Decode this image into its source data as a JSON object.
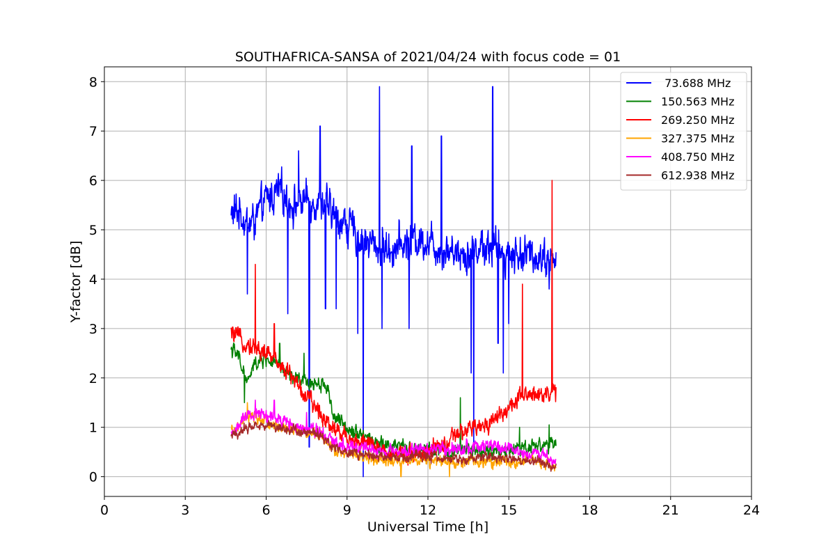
{
  "chart_data": {
    "type": "line",
    "title": "SOUTHAFRICA-SANSA of 2021/04/24 with focus code = 01",
    "xlabel": "Universal Time [h]",
    "ylabel": "Y-factor [dB]",
    "xlim": [
      0,
      24
    ],
    "ylim": [
      -0.4,
      8.3
    ],
    "xticks": [
      0,
      3,
      6,
      9,
      12,
      15,
      18,
      21,
      24
    ],
    "xtick_labels": [
      "0",
      "3",
      "6",
      "9",
      "12",
      "15",
      "18",
      "21",
      "24"
    ],
    "yticks": [
      0,
      1,
      2,
      3,
      4,
      5,
      6,
      7,
      8
    ],
    "ytick_labels": [
      "0",
      "1",
      "2",
      "3",
      "4",
      "5",
      "6",
      "7",
      "8"
    ],
    "grid": true,
    "legend_position": "top-right",
    "series": [
      {
        "name": " 73.688 MHz",
        "color": "#0000ff",
        "noise": 0.45,
        "x": [
          4.7,
          5.0,
          5.3,
          5.6,
          6.0,
          6.5,
          7.0,
          7.5,
          8.0,
          8.5,
          9.0,
          9.5,
          10.0,
          10.5,
          11.0,
          11.5,
          12.0,
          12.5,
          13.0,
          13.5,
          14.0,
          14.5,
          15.0,
          15.5,
          16.0,
          16.5,
          16.75
        ],
        "y": [
          5.3,
          5.4,
          5.1,
          5.2,
          5.6,
          5.8,
          5.5,
          5.6,
          5.6,
          5.3,
          5.1,
          4.8,
          4.7,
          4.6,
          4.7,
          4.8,
          4.8,
          4.6,
          4.6,
          4.5,
          4.7,
          4.6,
          4.5,
          4.5,
          4.5,
          4.4,
          4.3
        ],
        "spikes": [
          {
            "x": 5.3,
            "y": 3.7
          },
          {
            "x": 6.8,
            "y": 3.3
          },
          {
            "x": 7.2,
            "y": 6.6
          },
          {
            "x": 7.6,
            "y": 0.6
          },
          {
            "x": 8.0,
            "y": 7.1
          },
          {
            "x": 8.2,
            "y": 3.4
          },
          {
            "x": 8.6,
            "y": 3.4
          },
          {
            "x": 9.4,
            "y": 2.9
          },
          {
            "x": 9.6,
            "y": 0.0
          },
          {
            "x": 10.2,
            "y": 7.9
          },
          {
            "x": 10.3,
            "y": 3.0
          },
          {
            "x": 11.3,
            "y": 3.0
          },
          {
            "x": 11.4,
            "y": 6.7
          },
          {
            "x": 12.5,
            "y": 6.9
          },
          {
            "x": 13.6,
            "y": 2.1
          },
          {
            "x": 13.7,
            "y": 0.6
          },
          {
            "x": 14.4,
            "y": 7.9
          },
          {
            "x": 14.6,
            "y": 2.7
          },
          {
            "x": 14.8,
            "y": 2.1
          },
          {
            "x": 15.0,
            "y": 3.1
          },
          {
            "x": 16.5,
            "y": 3.8
          }
        ]
      },
      {
        "name": "150.563 MHz",
        "color": "#008000",
        "noise": 0.18,
        "x": [
          4.7,
          5.0,
          5.3,
          5.6,
          6.0,
          6.5,
          7.0,
          7.5,
          8.0,
          8.3,
          8.5,
          9.0,
          9.5,
          10.0,
          10.5,
          11.0,
          11.5,
          12.0,
          12.5,
          13.0,
          13.5,
          14.0,
          14.5,
          15.0,
          15.5,
          16.0,
          16.5,
          16.75
        ],
        "y": [
          2.6,
          2.4,
          1.9,
          2.3,
          2.4,
          2.2,
          2.0,
          1.9,
          1.9,
          1.8,
          1.2,
          1.0,
          0.9,
          0.7,
          0.6,
          0.6,
          0.55,
          0.55,
          0.5,
          0.5,
          0.55,
          0.5,
          0.5,
          0.55,
          0.6,
          0.65,
          0.65,
          0.6
        ],
        "spikes": [
          {
            "x": 5.2,
            "y": 1.5
          },
          {
            "x": 6.5,
            "y": 2.7
          },
          {
            "x": 7.4,
            "y": 2.5
          },
          {
            "x": 13.2,
            "y": 1.6
          },
          {
            "x": 15.4,
            "y": 1.0
          },
          {
            "x": 16.5,
            "y": 1.05
          }
        ]
      },
      {
        "name": "269.250 MHz",
        "color": "#ff0000",
        "noise": 0.22,
        "x": [
          4.7,
          5.0,
          5.3,
          5.6,
          6.0,
          6.5,
          7.0,
          7.5,
          8.0,
          8.5,
          9.0,
          9.5,
          10.0,
          10.5,
          11.0,
          11.5,
          12.0,
          12.5,
          13.0,
          13.5,
          14.0,
          14.5,
          15.0,
          15.5,
          16.0,
          16.5,
          16.75
        ],
        "y": [
          2.9,
          2.8,
          2.7,
          2.6,
          2.5,
          2.3,
          2.0,
          1.6,
          1.3,
          1.0,
          0.8,
          0.7,
          0.6,
          0.5,
          0.45,
          0.5,
          0.5,
          0.6,
          0.8,
          0.95,
          1.0,
          1.2,
          1.4,
          1.6,
          1.7,
          1.7,
          1.7
        ],
        "spikes": [
          {
            "x": 5.6,
            "y": 4.3
          },
          {
            "x": 6.3,
            "y": 3.1
          },
          {
            "x": 15.5,
            "y": 3.9
          },
          {
            "x": 16.6,
            "y": 6.0
          }
        ]
      },
      {
        "name": "327.375 MHz",
        "color": "#ffa500",
        "noise": 0.14,
        "x": [
          4.7,
          5.0,
          5.3,
          5.6,
          6.0,
          6.5,
          7.0,
          7.5,
          8.0,
          8.5,
          9.0,
          9.5,
          10.0,
          10.5,
          11.0,
          11.5,
          12.0,
          12.5,
          13.0,
          13.5,
          14.0,
          14.5,
          15.0,
          15.5,
          16.0,
          16.5,
          16.75
        ],
        "y": [
          0.9,
          1.0,
          1.2,
          1.2,
          1.1,
          1.0,
          0.95,
          0.9,
          0.85,
          0.55,
          0.45,
          0.4,
          0.35,
          0.3,
          0.3,
          0.35,
          0.3,
          0.3,
          0.3,
          0.3,
          0.3,
          0.3,
          0.3,
          0.3,
          0.3,
          0.25,
          0.2
        ],
        "spikes": [
          {
            "x": 5.3,
            "y": 1.5
          },
          {
            "x": 11.0,
            "y": 0.0
          },
          {
            "x": 12.8,
            "y": 0.0
          }
        ]
      },
      {
        "name": "408.750 MHz",
        "color": "#ff00ff",
        "noise": 0.16,
        "x": [
          4.7,
          5.0,
          5.3,
          5.6,
          6.0,
          6.5,
          7.0,
          7.5,
          8.0,
          8.5,
          9.0,
          9.5,
          10.0,
          10.5,
          11.0,
          11.5,
          12.0,
          12.5,
          13.0,
          13.5,
          14.0,
          14.5,
          15.0,
          15.5,
          16.0,
          16.5,
          16.75
        ],
        "y": [
          0.85,
          1.05,
          1.2,
          1.3,
          1.25,
          1.15,
          1.05,
          1.0,
          0.95,
          0.7,
          0.65,
          0.6,
          0.5,
          0.5,
          0.5,
          0.55,
          0.55,
          0.6,
          0.55,
          0.6,
          0.6,
          0.6,
          0.55,
          0.5,
          0.45,
          0.4,
          0.35
        ],
        "spikes": [
          {
            "x": 5.6,
            "y": 1.55
          },
          {
            "x": 6.3,
            "y": 1.55
          },
          {
            "x": 7.5,
            "y": 1.3
          }
        ]
      },
      {
        "name": "612.938 MHz",
        "color": "#a52a2a",
        "noise": 0.12,
        "x": [
          4.7,
          5.0,
          5.3,
          5.6,
          6.0,
          6.5,
          7.0,
          7.5,
          8.0,
          8.5,
          9.0,
          9.5,
          10.0,
          10.5,
          11.0,
          11.5,
          12.0,
          12.5,
          13.0,
          13.5,
          14.0,
          14.5,
          15.0,
          15.5,
          16.0,
          16.5,
          16.75
        ],
        "y": [
          0.8,
          0.9,
          1.0,
          1.05,
          1.05,
          1.0,
          0.95,
          0.9,
          0.85,
          0.6,
          0.5,
          0.45,
          0.4,
          0.4,
          0.35,
          0.4,
          0.4,
          0.4,
          0.35,
          0.35,
          0.4,
          0.4,
          0.35,
          0.35,
          0.3,
          0.25,
          0.2
        ],
        "spikes": []
      }
    ]
  }
}
